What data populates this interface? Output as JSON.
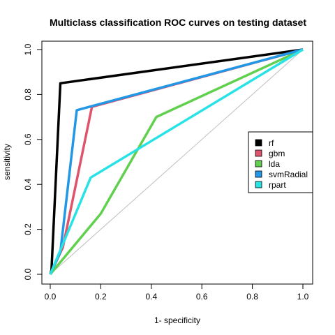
{
  "chart_data": {
    "type": "line",
    "title": "Multiclass classification ROC curves on testing dataset",
    "xlabel": "1- specificity",
    "ylabel": "sensitivity",
    "xlim": [
      0,
      1
    ],
    "ylim": [
      0,
      1
    ],
    "x_ticks": [
      "0.0",
      "0.2",
      "0.4",
      "0.6",
      "0.8",
      "1.0"
    ],
    "y_ticks": [
      "0.0",
      "0.2",
      "0.4",
      "0.6",
      "0.8",
      "1.0"
    ],
    "grid": false,
    "legend_position": "right",
    "diagonal_color": "#bebebe",
    "series": [
      {
        "name": "rf",
        "color": "#000000",
        "points": [
          [
            0,
            0
          ],
          [
            0.005,
            0.02
          ],
          [
            0.04,
            0.85
          ],
          [
            1,
            1
          ]
        ]
      },
      {
        "name": "gbm",
        "color": "#df536b",
        "points": [
          [
            0,
            0
          ],
          [
            0.05,
            0.12
          ],
          [
            0.165,
            0.745
          ],
          [
            1,
            1
          ]
        ]
      },
      {
        "name": "lda",
        "color": "#61d04f",
        "points": [
          [
            0,
            0
          ],
          [
            0.2,
            0.27
          ],
          [
            0.42,
            0.7
          ],
          [
            1,
            1
          ]
        ]
      },
      {
        "name": "svmRadial",
        "color": "#2297e6",
        "points": [
          [
            0,
            0
          ],
          [
            0.04,
            0.1
          ],
          [
            0.105,
            0.73
          ],
          [
            1,
            1
          ]
        ]
      },
      {
        "name": "rpart",
        "color": "#28e2e5",
        "points": [
          [
            0,
            0
          ],
          [
            0.16,
            0.43
          ],
          [
            1,
            1
          ]
        ]
      }
    ]
  }
}
